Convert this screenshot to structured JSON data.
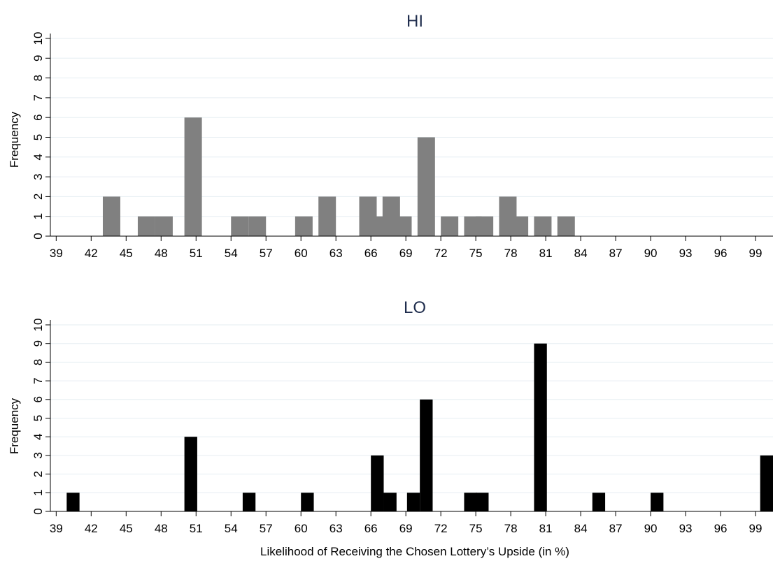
{
  "chart_data": [
    {
      "type": "bar",
      "title": "HI",
      "ylabel": "Frequency",
      "xlabel": "",
      "bar_color": "#808080",
      "bin_width": 1.5,
      "xlim": [
        38.5,
        100.5
      ],
      "ylim": [
        0,
        10
      ],
      "x_ticks": [
        "39",
        "42",
        "45",
        "48",
        "51",
        "54",
        "57",
        "60",
        "63",
        "66",
        "69",
        "72",
        "75",
        "78",
        "81",
        "84",
        "87",
        "90",
        "93",
        "96",
        "99"
      ],
      "y_ticks": [
        "0",
        "1",
        "2",
        "3",
        "4",
        "5",
        "6",
        "7",
        "8",
        "9",
        "10"
      ],
      "grid": true,
      "bins": [
        {
          "start": 43.0,
          "value": 2
        },
        {
          "start": 46.0,
          "value": 1
        },
        {
          "start": 47.5,
          "value": 1
        },
        {
          "start": 50.0,
          "value": 6
        },
        {
          "start": 54.0,
          "value": 1
        },
        {
          "start": 55.5,
          "value": 1
        },
        {
          "start": 59.5,
          "value": 1
        },
        {
          "start": 61.5,
          "value": 2
        },
        {
          "start": 65.0,
          "value": 2
        },
        {
          "start": 66.0,
          "value": 1
        },
        {
          "start": 67.0,
          "value": 2
        },
        {
          "start": 68.0,
          "value": 1
        },
        {
          "start": 70.0,
          "value": 5
        },
        {
          "start": 72.0,
          "value": 1
        },
        {
          "start": 74.0,
          "value": 1
        },
        {
          "start": 75.0,
          "value": 1
        },
        {
          "start": 77.0,
          "value": 2
        },
        {
          "start": 78.0,
          "value": 1
        },
        {
          "start": 80.0,
          "value": 1
        },
        {
          "start": 82.0,
          "value": 1
        }
      ]
    },
    {
      "type": "bar",
      "title": "LO",
      "ylabel": "Frequency",
      "xlabel": "Likelihood of Receiving the Chosen Lottery’s Upside (in %)",
      "bar_color": "#000000",
      "bin_width": 1.1,
      "xlim": [
        38.5,
        100.5
      ],
      "ylim": [
        0,
        10
      ],
      "x_ticks": [
        "39",
        "42",
        "45",
        "48",
        "51",
        "54",
        "57",
        "60",
        "63",
        "66",
        "69",
        "72",
        "75",
        "78",
        "81",
        "84",
        "87",
        "90",
        "93",
        "96",
        "99"
      ],
      "y_ticks": [
        "0",
        "1",
        "2",
        "3",
        "4",
        "5",
        "6",
        "7",
        "8",
        "9",
        "10"
      ],
      "grid": true,
      "bins": [
        {
          "start": 39.9,
          "value": 1
        },
        {
          "start": 50.0,
          "value": 4
        },
        {
          "start": 55.0,
          "value": 1
        },
        {
          "start": 60.0,
          "value": 1
        },
        {
          "start": 66.0,
          "value": 3
        },
        {
          "start": 67.1,
          "value": 1
        },
        {
          "start": 69.1,
          "value": 1
        },
        {
          "start": 70.2,
          "value": 6
        },
        {
          "start": 74.0,
          "value": 1
        },
        {
          "start": 75.0,
          "value": 1
        },
        {
          "start": 80.0,
          "value": 9
        },
        {
          "start": 85.0,
          "value": 1
        },
        {
          "start": 90.0,
          "value": 1
        },
        {
          "start": 99.4,
          "value": 3
        }
      ]
    }
  ]
}
